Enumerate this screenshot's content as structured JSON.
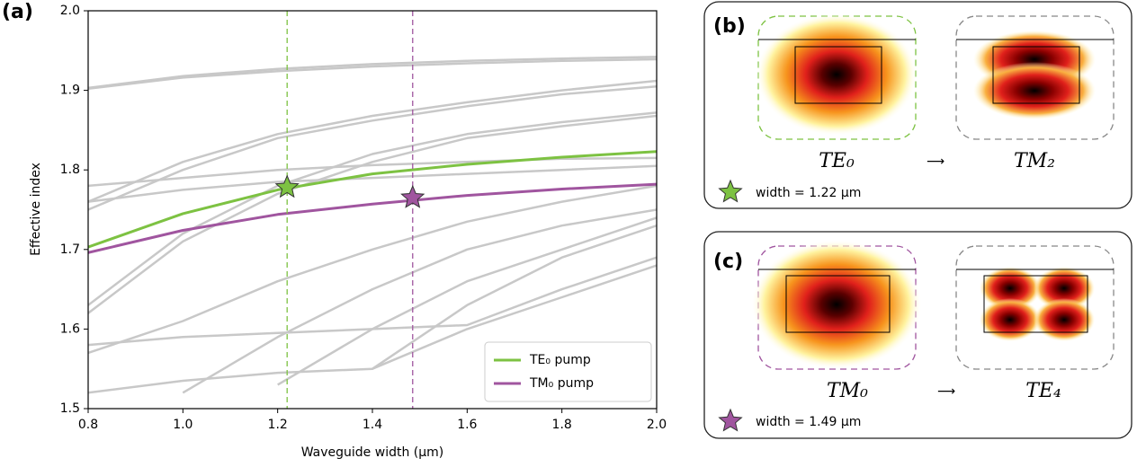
{
  "chart_data": {
    "type": "line",
    "panel_label": "(a)",
    "x_label": "Waveguide width (µm)",
    "y_label": "Effective index",
    "x": [
      0.8,
      1.0,
      1.2,
      1.4,
      1.6,
      1.8,
      2.0
    ],
    "xlim": [
      0.8,
      2.0
    ],
    "ylim": [
      1.5,
      2.0
    ],
    "xticks": [
      0.8,
      {
        "value": 1,
        "label": "1.0"
      },
      1.2,
      1.4,
      1.6,
      1.8,
      {
        "value": 2,
        "label": "2.0"
      }
    ],
    "yticks": [
      1.5,
      1.6,
      1.7,
      1.8,
      1.9,
      {
        "value": 2,
        "label": "2.0"
      }
    ],
    "legend": "lower right",
    "series": [
      {
        "color": "#c8c8c8",
        "values": [
          1.903,
          1.918,
          1.927,
          1.933,
          1.937,
          1.94,
          1.942
        ]
      },
      {
        "color": "#c8c8c8",
        "values": [
          1.902,
          1.916,
          1.924,
          1.93,
          1.934,
          1.937,
          1.939
        ]
      },
      {
        "color": "#c8c8c8",
        "values": [
          1.76,
          1.81,
          1.845,
          1.868,
          1.885,
          1.9,
          1.912
        ]
      },
      {
        "color": "#c8c8c8",
        "values": [
          1.75,
          1.8,
          1.84,
          1.862,
          1.88,
          1.895,
          1.905
        ]
      },
      {
        "color": "#c8c8c8",
        "values": [
          1.63,
          1.72,
          1.78,
          1.82,
          1.845,
          1.86,
          1.872
        ]
      },
      {
        "color": "#c8c8c8",
        "values": [
          1.62,
          1.71,
          1.77,
          1.81,
          1.84,
          1.855,
          1.868
        ]
      },
      {
        "color": "#c8c8c8",
        "values": [
          1.78,
          1.79,
          1.8,
          1.806,
          1.81,
          1.814,
          1.815
        ]
      },
      {
        "color": "#c8c8c8",
        "values": [
          1.76,
          1.775,
          1.785,
          1.79,
          1.795,
          1.8,
          1.805
        ]
      },
      {
        "color": "#c8c8c8",
        "values": [
          1.57,
          1.61,
          1.66,
          1.7,
          1.735,
          1.76,
          1.78
        ]
      },
      {
        "color": "#c8c8c8",
        "values": [
          1.58,
          1.59,
          1.595,
          1.6,
          1.605,
          1.65,
          1.69
        ]
      },
      {
        "color": "#c8c8c8",
        "values": [
          1.52,
          1.535,
          1.545,
          1.55,
          1.6,
          1.64,
          1.68
        ]
      },
      {
        "color": "#c8c8c8",
        "values": [
          null,
          1.52,
          1.59,
          1.65,
          1.7,
          1.73,
          1.75
        ]
      },
      {
        "color": "#c8c8c8",
        "values": [
          null,
          null,
          1.53,
          1.6,
          1.66,
          1.7,
          1.74
        ]
      },
      {
        "color": "#c8c8c8",
        "values": [
          null,
          null,
          null,
          1.55,
          1.63,
          1.69,
          1.73
        ]
      },
      {
        "name": "TE₀ pump",
        "color": "#7dc242",
        "values": [
          1.703,
          1.745,
          1.775,
          1.795,
          1.807,
          1.816,
          1.823
        ]
      },
      {
        "name": "TM₀ pump",
        "color": "#a0559f",
        "values": [
          1.696,
          1.724,
          1.744,
          1.757,
          1.768,
          1.776,
          1.782
        ]
      }
    ],
    "markers": [
      {
        "x": 1.22,
        "y": 1.778,
        "color": "#7dc242"
      },
      {
        "x": 1.485,
        "y": 1.765,
        "color": "#a0559f"
      }
    ]
  },
  "panels": [
    {
      "label": "(b)",
      "from": "TE₀",
      "arrow": "⟶",
      "to": "TM₂",
      "note": "width = 1.22 µm"
    },
    {
      "label": "(c)",
      "from": "TM₀",
      "arrow": "⟶",
      "to": "TE₄",
      "note": "width = 1.49 µm"
    }
  ]
}
